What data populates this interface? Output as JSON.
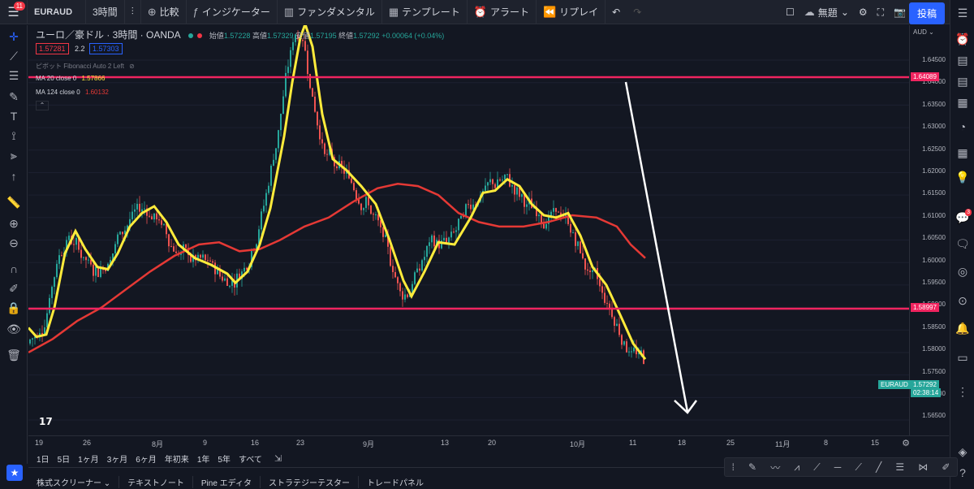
{
  "topbar": {
    "menu_badge": "11",
    "symbol": "EURAUD",
    "interval": "3時間",
    "compare": "比較",
    "indicators": "インジケーター",
    "fundamentals": "ファンダメンタル",
    "templates": "テンプレート",
    "alert": "アラート",
    "replay": "リプレイ",
    "layout_name": "無題",
    "publish": "投稿"
  },
  "legend": {
    "title": "ユーロ／豪ドル · 3時間 · OANDA",
    "open_label": "始値",
    "open": "1.57228",
    "high_label": "高値",
    "high": "1.57329",
    "low_label": "安値",
    "low": "1.57195",
    "close_label": "終値",
    "close": "1.57292",
    "change": "+0.00064 (+0.04%)",
    "bid": "1.57281",
    "spread": "2.2",
    "ask": "1.57303",
    "pivot": "ピボット Fibonacci Auto 2 Left",
    "ma20_label": "MA 20 close 0",
    "ma20_value": "1.57866",
    "ma124_label": "MA 124 close 0",
    "ma124_value": "1.60132"
  },
  "price_axis": {
    "currency": "AUD",
    "labels": [
      "1.64500",
      "1.64000",
      "1.63500",
      "1.63000",
      "1.62500",
      "1.62000",
      "1.61500",
      "1.61000",
      "1.60500",
      "1.60000",
      "1.59500",
      "1.59000",
      "1.58500",
      "1.58000",
      "1.57500",
      "1.57000",
      "1.56500"
    ],
    "line_top": "1.64089",
    "line_bottom": "1.58997",
    "current_symbol": "EURAUD",
    "current_price": "1.57292",
    "countdown": "02:38:14"
  },
  "time_axis": {
    "labels": [
      "19",
      "26",
      "8月",
      "9",
      "16",
      "23",
      "9月",
      "13",
      "20",
      "10月",
      "11",
      "18",
      "25",
      "11月",
      "8",
      "15"
    ]
  },
  "range_bar": [
    "1日",
    "5日",
    "1ヶ月",
    "3ヶ月",
    "6ヶ月",
    "年初来",
    "1年",
    "5年",
    "すべて"
  ],
  "bottom_tabs": [
    "株式スクリーナー",
    "テキストノート",
    "Pine エディタ",
    "ストラテジーテスター",
    "トレードパネル"
  ],
  "right_badge": "3",
  "colors": {
    "bg": "#131722",
    "hline": "#f0245f",
    "ma20": "#ffeb3b",
    "ma124": "#e53935",
    "up": "#26a69a",
    "down": "#ef5350",
    "arrow": "#ffffff"
  }
}
